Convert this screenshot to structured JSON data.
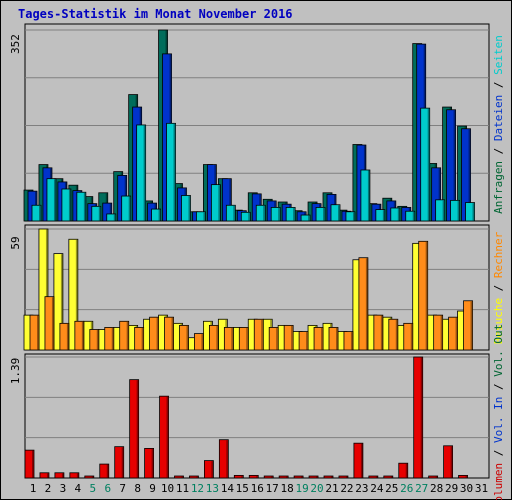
{
  "title": "Tages-Statistik im Monat November 2016",
  "chart_data": [
    {
      "type": "bar",
      "categories": [
        "1",
        "2",
        "3",
        "4",
        "5",
        "6",
        "7",
        "8",
        "9",
        "10",
        "11",
        "12",
        "13",
        "14",
        "15",
        "16",
        "17",
        "18",
        "19",
        "20",
        "21",
        "22",
        "23",
        "24",
        "25",
        "26",
        "27",
        "28",
        "29",
        "30",
        "31"
      ],
      "weekend_days": [
        "5",
        "6",
        "12",
        "13",
        "19",
        "20",
        "26",
        "27"
      ],
      "ymax": 352,
      "ymax_label": "352",
      "legend": [
        {
          "text": "Anfragen",
          "color": "#006633"
        },
        {
          "text": "Dateien",
          "color": "#0033cc"
        },
        {
          "text": "Seiten",
          "color": "#00cccc"
        }
      ],
      "separator": " / ",
      "series": [
        {
          "name": "Anfragen",
          "color": "#006d5b",
          "values": [
            57,
            104,
            78,
            66,
            45,
            52,
            91,
            233,
            37,
            352,
            69,
            17,
            104,
            78,
            20,
            52,
            40,
            35,
            19,
            35,
            52,
            20,
            141,
            32,
            42,
            27,
            327,
            106,
            210,
            175,
            0
          ]
        },
        {
          "name": "Dateien",
          "color": "#0033cc",
          "values": [
            55,
            98,
            72,
            56,
            32,
            33,
            84,
            210,
            33,
            308,
            61,
            17,
            104,
            78,
            19,
            50,
            37,
            31,
            17,
            32,
            49,
            18,
            140,
            31,
            37,
            25,
            326,
            98,
            205,
            170,
            0
          ]
        },
        {
          "name": "Seiten",
          "color": "#00cccc",
          "values": [
            29,
            78,
            59,
            53,
            27,
            13,
            46,
            177,
            22,
            180,
            47,
            17,
            67,
            29,
            16,
            29,
            25,
            25,
            11,
            25,
            30,
            17,
            94,
            21,
            24,
            18,
            208,
            39,
            38,
            34,
            0
          ]
        }
      ]
    },
    {
      "type": "bar",
      "ymax": 59,
      "ymax_label": "59",
      "legend": [
        {
          "text": "Besuche",
          "color": "#ffff00"
        },
        {
          "text": "Rechner",
          "color": "#ff8800"
        }
      ],
      "separator": " / ",
      "series": [
        {
          "name": "Besuche",
          "color": "#ffff33",
          "values": [
            17,
            59,
            47,
            54,
            14,
            10,
            11,
            12,
            15,
            17,
            13,
            6,
            14,
            15,
            11,
            15,
            15,
            12,
            9,
            12,
            13,
            9,
            44,
            17,
            16,
            12,
            52,
            17,
            15,
            19,
            0
          ]
        },
        {
          "name": "Rechner",
          "color": "#ff8c1a",
          "values": [
            17,
            26,
            13,
            14,
            10,
            11,
            14,
            11,
            16,
            16,
            12,
            8,
            12,
            11,
            11,
            15,
            11,
            12,
            9,
            11,
            11,
            9,
            45,
            17,
            15,
            13,
            53,
            17,
            16,
            24,
            0
          ]
        }
      ]
    },
    {
      "type": "bar",
      "ymax": 1.39,
      "ymax_label": "1.39",
      "legend": [
        {
          "text": "Volumen",
          "color": "#cc0000"
        },
        {
          "text": "Vol. In",
          "color": "#0033cc"
        },
        {
          "text": "Vol. Out",
          "color": "#006633"
        }
      ],
      "separator": " / ",
      "series": [
        {
          "name": "Volumen",
          "color": "#e60000",
          "values": [
            0.32,
            0.06,
            0.06,
            0.06,
            0.02,
            0.16,
            0.36,
            1.13,
            0.34,
            0.94,
            0.02,
            0.02,
            0.2,
            0.44,
            0.03,
            0.03,
            0.02,
            0.02,
            0.02,
            0.02,
            0.02,
            0.02,
            0.4,
            0.02,
            0.02,
            0.17,
            1.39,
            0.02,
            0.37,
            0.03,
            0
          ]
        }
      ]
    }
  ]
}
